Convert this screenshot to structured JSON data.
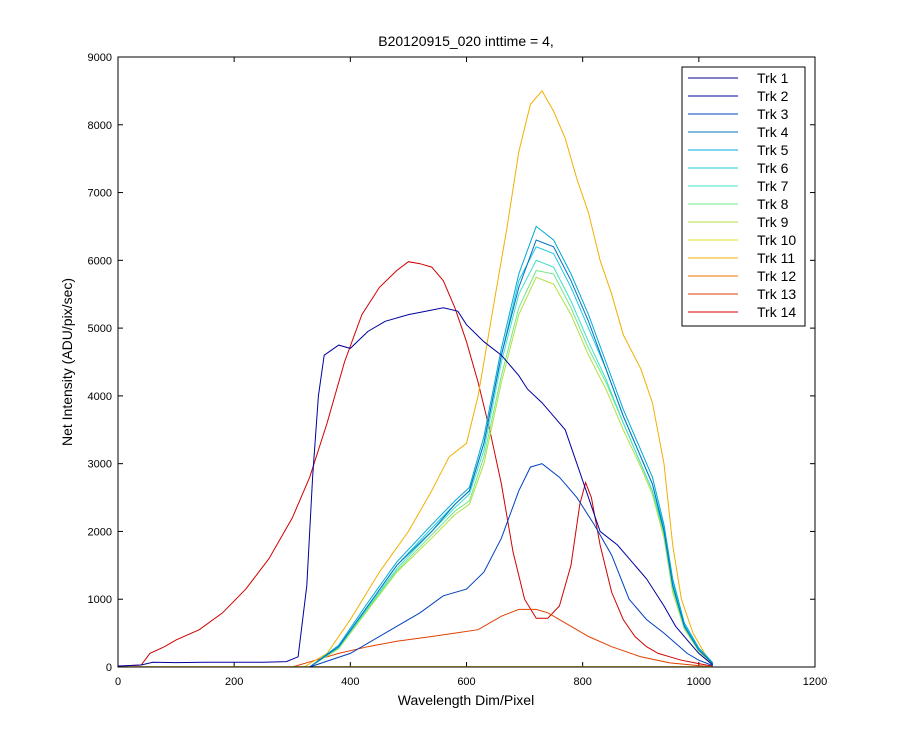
{
  "chart_data": {
    "type": "line",
    "title": "B20120915_020 inttime = 4,",
    "xlabel": "Wavelength Dim/Pixel",
    "ylabel": "Net Intensity (ADU/pix/sec)",
    "xlim": [
      0,
      1200
    ],
    "ylim": [
      0,
      9000
    ],
    "xticks": [
      0,
      200,
      400,
      600,
      800,
      1000,
      1200
    ],
    "yticks": [
      0,
      1000,
      2000,
      3000,
      4000,
      5000,
      6000,
      7000,
      8000,
      9000
    ],
    "legend_position": "top-right",
    "series": [
      {
        "name": "Trk 1",
        "color": "#00008F",
        "points": [
          [
            0,
            0
          ],
          [
            1024,
            0
          ]
        ]
      },
      {
        "name": "Trk 2",
        "color": "#00009F",
        "points": [
          [
            0,
            15
          ],
          [
            40,
            30
          ],
          [
            60,
            70
          ],
          [
            100,
            65
          ],
          [
            150,
            70
          ],
          [
            200,
            70
          ],
          [
            250,
            70
          ],
          [
            290,
            80
          ],
          [
            310,
            150
          ],
          [
            325,
            1200
          ],
          [
            335,
            2800
          ],
          [
            345,
            4000
          ],
          [
            355,
            4600
          ],
          [
            380,
            4750
          ],
          [
            400,
            4700
          ],
          [
            430,
            4950
          ],
          [
            460,
            5100
          ],
          [
            500,
            5200
          ],
          [
            530,
            5250
          ],
          [
            560,
            5300
          ],
          [
            585,
            5250
          ],
          [
            600,
            5050
          ],
          [
            630,
            4800
          ],
          [
            660,
            4600
          ],
          [
            690,
            4300
          ],
          [
            705,
            4100
          ],
          [
            730,
            3900
          ],
          [
            750,
            3700
          ],
          [
            770,
            3500
          ],
          [
            790,
            3000
          ],
          [
            810,
            2500
          ],
          [
            830,
            2000
          ],
          [
            860,
            1800
          ],
          [
            880,
            1600
          ],
          [
            910,
            1300
          ],
          [
            940,
            900
          ],
          [
            960,
            600
          ],
          [
            980,
            400
          ],
          [
            1000,
            200
          ],
          [
            1024,
            30
          ]
        ]
      },
      {
        "name": "Trk 3",
        "color": "#0040C0",
        "points": [
          [
            330,
            0
          ],
          [
            400,
            200
          ],
          [
            460,
            500
          ],
          [
            520,
            800
          ],
          [
            560,
            1050
          ],
          [
            600,
            1150
          ],
          [
            630,
            1400
          ],
          [
            660,
            1900
          ],
          [
            690,
            2600
          ],
          [
            710,
            2950
          ],
          [
            730,
            3000
          ],
          [
            760,
            2800
          ],
          [
            790,
            2500
          ],
          [
            820,
            2100
          ],
          [
            850,
            1650
          ],
          [
            880,
            1000
          ],
          [
            910,
            700
          ],
          [
            940,
            500
          ],
          [
            960,
            350
          ],
          [
            980,
            200
          ],
          [
            1000,
            100
          ],
          [
            1024,
            20
          ]
        ]
      },
      {
        "name": "Trk 4",
        "color": "#0070C0",
        "points": [
          [
            330,
            0
          ],
          [
            380,
            300
          ],
          [
            430,
            900
          ],
          [
            480,
            1500
          ],
          [
            540,
            2000
          ],
          [
            580,
            2400
          ],
          [
            605,
            2600
          ],
          [
            630,
            3300
          ],
          [
            660,
            4600
          ],
          [
            690,
            5600
          ],
          [
            720,
            6300
          ],
          [
            750,
            6200
          ],
          [
            780,
            5700
          ],
          [
            810,
            5100
          ],
          [
            840,
            4400
          ],
          [
            870,
            3700
          ],
          [
            900,
            3100
          ],
          [
            920,
            2700
          ],
          [
            940,
            2000
          ],
          [
            955,
            1200
          ],
          [
            975,
            600
          ],
          [
            1000,
            250
          ],
          [
            1024,
            50
          ]
        ]
      },
      {
        "name": "Trk 5",
        "color": "#00A8D8",
        "points": [
          [
            330,
            0
          ],
          [
            380,
            320
          ],
          [
            430,
            950
          ],
          [
            480,
            1550
          ],
          [
            540,
            2100
          ],
          [
            580,
            2450
          ],
          [
            605,
            2650
          ],
          [
            630,
            3400
          ],
          [
            660,
            4700
          ],
          [
            690,
            5800
          ],
          [
            720,
            6500
          ],
          [
            750,
            6300
          ],
          [
            780,
            5800
          ],
          [
            810,
            5200
          ],
          [
            840,
            4500
          ],
          [
            870,
            3800
          ],
          [
            900,
            3200
          ],
          [
            920,
            2800
          ],
          [
            940,
            2100
          ],
          [
            955,
            1300
          ],
          [
            975,
            650
          ],
          [
            1000,
            280
          ],
          [
            1024,
            60
          ]
        ]
      },
      {
        "name": "Trk 6",
        "color": "#20C8E0",
        "points": [
          [
            330,
            0
          ],
          [
            380,
            300
          ],
          [
            430,
            900
          ],
          [
            480,
            1500
          ],
          [
            540,
            2050
          ],
          [
            580,
            2400
          ],
          [
            605,
            2600
          ],
          [
            630,
            3300
          ],
          [
            660,
            4600
          ],
          [
            690,
            5700
          ],
          [
            720,
            6200
          ],
          [
            750,
            6100
          ],
          [
            780,
            5600
          ],
          [
            810,
            5000
          ],
          [
            840,
            4400
          ],
          [
            870,
            3700
          ],
          [
            900,
            3100
          ],
          [
            920,
            2700
          ],
          [
            940,
            2050
          ],
          [
            955,
            1250
          ],
          [
            975,
            620
          ],
          [
            1000,
            260
          ],
          [
            1024,
            55
          ]
        ]
      },
      {
        "name": "Trk 7",
        "color": "#40E0C8",
        "points": [
          [
            330,
            0
          ],
          [
            380,
            290
          ],
          [
            430,
            880
          ],
          [
            480,
            1450
          ],
          [
            540,
            2000
          ],
          [
            580,
            2350
          ],
          [
            605,
            2550
          ],
          [
            630,
            3200
          ],
          [
            660,
            4500
          ],
          [
            690,
            5500
          ],
          [
            720,
            6000
          ],
          [
            750,
            5900
          ],
          [
            780,
            5400
          ],
          [
            810,
            4800
          ],
          [
            840,
            4250
          ],
          [
            870,
            3600
          ],
          [
            900,
            3000
          ],
          [
            920,
            2600
          ],
          [
            940,
            2000
          ],
          [
            955,
            1200
          ],
          [
            975,
            600
          ],
          [
            1000,
            250
          ],
          [
            1024,
            50
          ]
        ]
      },
      {
        "name": "Trk 8",
        "color": "#70E888",
        "points": [
          [
            330,
            0
          ],
          [
            380,
            280
          ],
          [
            430,
            860
          ],
          [
            480,
            1420
          ],
          [
            540,
            1950
          ],
          [
            580,
            2300
          ],
          [
            605,
            2450
          ],
          [
            630,
            3100
          ],
          [
            660,
            4300
          ],
          [
            690,
            5300
          ],
          [
            720,
            5850
          ],
          [
            750,
            5800
          ],
          [
            780,
            5300
          ],
          [
            810,
            4700
          ],
          [
            840,
            4200
          ],
          [
            870,
            3600
          ],
          [
            900,
            3000
          ],
          [
            920,
            2600
          ],
          [
            940,
            1950
          ],
          [
            955,
            1150
          ],
          [
            975,
            580
          ],
          [
            1000,
            240
          ],
          [
            1024,
            50
          ]
        ]
      },
      {
        "name": "Trk 9",
        "color": "#B0E040",
        "points": [
          [
            330,
            0
          ],
          [
            380,
            270
          ],
          [
            430,
            840
          ],
          [
            480,
            1400
          ],
          [
            540,
            1900
          ],
          [
            580,
            2250
          ],
          [
            605,
            2400
          ],
          [
            630,
            3000
          ],
          [
            660,
            4200
          ],
          [
            690,
            5200
          ],
          [
            720,
            5750
          ],
          [
            750,
            5650
          ],
          [
            780,
            5200
          ],
          [
            810,
            4600
          ],
          [
            840,
            4100
          ],
          [
            870,
            3500
          ],
          [
            900,
            2950
          ],
          [
            920,
            2550
          ],
          [
            940,
            1900
          ],
          [
            955,
            1100
          ],
          [
            975,
            560
          ],
          [
            1000,
            230
          ],
          [
            1024,
            45
          ]
        ]
      },
      {
        "name": "Trk 10",
        "color": "#E0E020",
        "points": [
          [
            0,
            5
          ],
          [
            1024,
            5
          ]
        ]
      },
      {
        "name": "Trk 11",
        "color": "#F0B000",
        "points": [
          [
            320,
            0
          ],
          [
            360,
            200
          ],
          [
            400,
            700
          ],
          [
            450,
            1400
          ],
          [
            500,
            2000
          ],
          [
            540,
            2600
          ],
          [
            570,
            3100
          ],
          [
            600,
            3300
          ],
          [
            620,
            4000
          ],
          [
            650,
            5500
          ],
          [
            670,
            6500
          ],
          [
            690,
            7600
          ],
          [
            710,
            8300
          ],
          [
            730,
            8500
          ],
          [
            750,
            8200
          ],
          [
            770,
            7800
          ],
          [
            790,
            7200
          ],
          [
            810,
            6700
          ],
          [
            830,
            6000
          ],
          [
            850,
            5500
          ],
          [
            870,
            4900
          ],
          [
            900,
            4400
          ],
          [
            920,
            3900
          ],
          [
            940,
            3000
          ],
          [
            955,
            1800
          ],
          [
            970,
            1000
          ],
          [
            990,
            500
          ],
          [
            1010,
            200
          ],
          [
            1024,
            50
          ]
        ]
      },
      {
        "name": "Trk 12",
        "color": "#F07000",
        "points": [
          [
            0,
            5
          ],
          [
            1024,
            5
          ]
        ]
      },
      {
        "name": "Trk 13",
        "color": "#E04000",
        "points": [
          [
            300,
            0
          ],
          [
            340,
            100
          ],
          [
            380,
            200
          ],
          [
            430,
            300
          ],
          [
            480,
            380
          ],
          [
            540,
            450
          ],
          [
            580,
            500
          ],
          [
            620,
            550
          ],
          [
            660,
            750
          ],
          [
            690,
            850
          ],
          [
            720,
            850
          ],
          [
            740,
            800
          ],
          [
            770,
            650
          ],
          [
            810,
            450
          ],
          [
            850,
            300
          ],
          [
            900,
            150
          ],
          [
            950,
            60
          ],
          [
            1000,
            20
          ],
          [
            1024,
            0
          ]
        ]
      },
      {
        "name": "Trk 14",
        "color": "#D00000",
        "points": [
          [
            0,
            10
          ],
          [
            40,
            30
          ],
          [
            55,
            200
          ],
          [
            80,
            300
          ],
          [
            100,
            400
          ],
          [
            140,
            550
          ],
          [
            180,
            800
          ],
          [
            220,
            1150
          ],
          [
            260,
            1600
          ],
          [
            300,
            2200
          ],
          [
            330,
            2800
          ],
          [
            360,
            3600
          ],
          [
            390,
            4500
          ],
          [
            420,
            5200
          ],
          [
            450,
            5600
          ],
          [
            480,
            5850
          ],
          [
            500,
            5980
          ],
          [
            520,
            5950
          ],
          [
            540,
            5900
          ],
          [
            560,
            5700
          ],
          [
            580,
            5300
          ],
          [
            600,
            4800
          ],
          [
            620,
            4200
          ],
          [
            640,
            3500
          ],
          [
            660,
            2700
          ],
          [
            680,
            1700
          ],
          [
            700,
            1000
          ],
          [
            720,
            720
          ],
          [
            740,
            720
          ],
          [
            760,
            900
          ],
          [
            780,
            1500
          ],
          [
            795,
            2400
          ],
          [
            805,
            2720
          ],
          [
            815,
            2500
          ],
          [
            830,
            1800
          ],
          [
            850,
            1100
          ],
          [
            870,
            700
          ],
          [
            890,
            450
          ],
          [
            910,
            300
          ],
          [
            930,
            200
          ],
          [
            950,
            150
          ],
          [
            970,
            100
          ],
          [
            1000,
            50
          ],
          [
            1024,
            10
          ]
        ]
      }
    ]
  }
}
